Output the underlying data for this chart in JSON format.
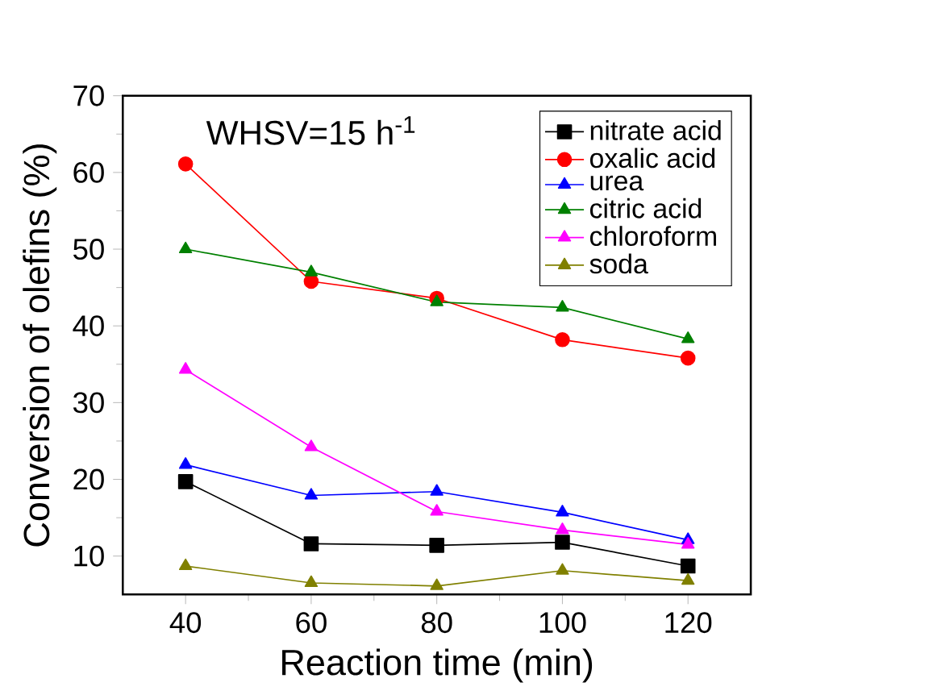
{
  "chart_data": {
    "type": "line",
    "xlabel": "Reaction time (min)",
    "ylabel": "Conversion of olefins (%)",
    "x": [
      40,
      60,
      80,
      100,
      120
    ],
    "xlim": [
      30,
      130
    ],
    "xticks": [
      40,
      60,
      80,
      100,
      120
    ],
    "ylim": [
      5,
      70
    ],
    "yticks": [
      10,
      20,
      30,
      40,
      50,
      60,
      70
    ],
    "legend": "top right",
    "annotations": [
      "WHSV=15 h$^{-1}$"
    ],
    "series": [
      {
        "name": "nitrate acid",
        "color": "#000000",
        "marker": "square",
        "values": [
          19.7,
          11.6,
          11.4,
          11.8,
          8.7
        ]
      },
      {
        "name": "oxalic acid",
        "color": "#ff0000",
        "marker": "circle",
        "values": [
          61.1,
          45.8,
          43.6,
          38.2,
          35.8
        ]
      },
      {
        "name": "urea",
        "color": "#0000ff",
        "marker": "triangle",
        "values": [
          21.9,
          17.9,
          18.4,
          15.7,
          12.1
        ]
      },
      {
        "name": "citric acid",
        "color": "#008000",
        "marker": "triangle",
        "values": [
          50.0,
          47.0,
          43.1,
          42.4,
          38.3
        ]
      },
      {
        "name": "chloroform",
        "color": "#ff00ff",
        "marker": "triangle",
        "values": [
          34.3,
          24.2,
          15.8,
          13.4,
          11.5
        ]
      },
      {
        "name": "soda",
        "color": "#808000",
        "marker": "triangle",
        "values": [
          8.7,
          6.5,
          6.1,
          8.1,
          6.8
        ]
      }
    ]
  }
}
